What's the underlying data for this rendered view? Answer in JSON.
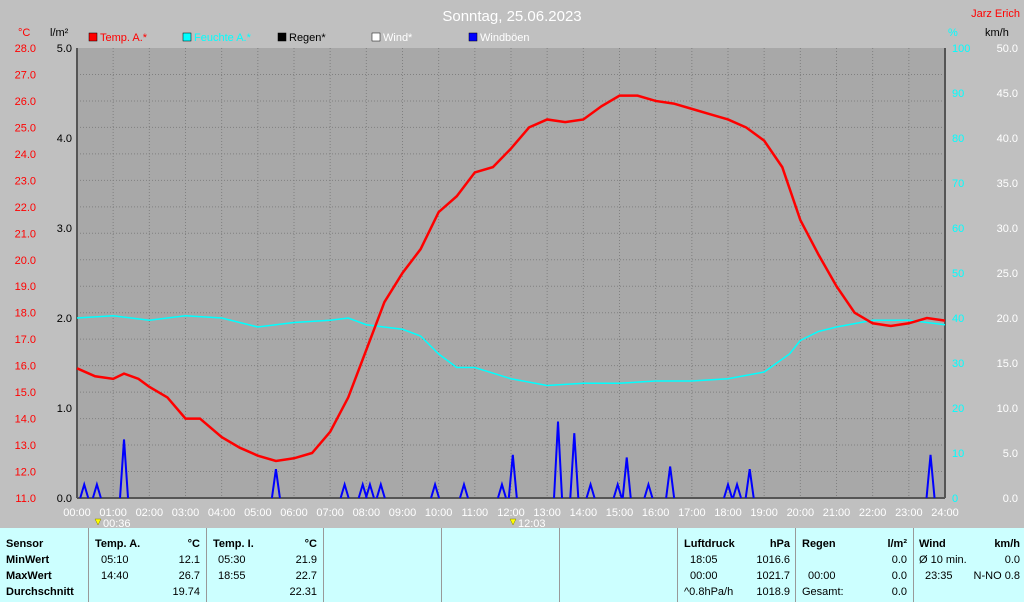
{
  "header": {
    "title": "Sonntag, 25.06.2023",
    "author": "Jarz Erich"
  },
  "units": {
    "temp": "°C",
    "rain": "l/m²",
    "hum": "%",
    "wind": "km/h"
  },
  "legend": [
    {
      "label": "Temp. A.*",
      "color": "#ff0000"
    },
    {
      "label": "Feuchte A.*",
      "color": "#00ffff"
    },
    {
      "label": "Regen*",
      "color": "#000000"
    },
    {
      "label": "Wind*",
      "color": "#ffffff"
    },
    {
      "label": "Windböen",
      "color": "#0000ff"
    }
  ],
  "marks": {
    "min": "00:36",
    "max": "12:03"
  },
  "chart_data": {
    "type": "line",
    "x_ticks": [
      "00:00",
      "01:00",
      "02:00",
      "03:00",
      "04:00",
      "05:00",
      "06:00",
      "07:00",
      "08:00",
      "09:00",
      "10:00",
      "11:00",
      "12:00",
      "13:00",
      "14:00",
      "15:00",
      "16:00",
      "17:00",
      "18:00",
      "19:00",
      "20:00",
      "21:00",
      "22:00",
      "23:00",
      "24:00"
    ],
    "temp_ticks": [
      "11.0",
      "12.0",
      "13.0",
      "14.0",
      "15.0",
      "16.0",
      "17.0",
      "18.0",
      "19.0",
      "20.0",
      "21.0",
      "22.0",
      "23.0",
      "24.0",
      "25.0",
      "26.0",
      "27.0",
      "28.0"
    ],
    "rain_ticks": [
      "0.0",
      "1.0",
      "2.0",
      "3.0",
      "4.0",
      "5.0"
    ],
    "hum_ticks": [
      "0",
      "10",
      "20",
      "30",
      "40",
      "50",
      "60",
      "70",
      "80",
      "90",
      "100"
    ],
    "wind_ticks": [
      "0.0",
      "5.0",
      "10.0",
      "15.0",
      "20.0",
      "25.0",
      "30.0",
      "35.0",
      "40.0",
      "45.0",
      "50.0"
    ],
    "temp_range": [
      11,
      28
    ],
    "hum_range": [
      0,
      100
    ],
    "wind_range": [
      0,
      50
    ],
    "series": [
      {
        "name": "Temp. A.*",
        "color": "#ff0000",
        "x": [
          0,
          0.5,
          1,
          1.3,
          1.7,
          2,
          2.5,
          3,
          3.4,
          4,
          4.5,
          5,
          5.5,
          6,
          6.5,
          7,
          7.5,
          8,
          8.5,
          9,
          9.5,
          10,
          10.5,
          11,
          11.5,
          12,
          12.5,
          13,
          13.5,
          14,
          14.5,
          15,
          15.5,
          16,
          16.5,
          17,
          17.5,
          18,
          18.5,
          19,
          19.5,
          20,
          20.5,
          21,
          21.5,
          22,
          22.5,
          23,
          23.5,
          24
        ],
        "y": [
          15.9,
          15.6,
          15.5,
          15.7,
          15.5,
          15.2,
          14.8,
          14.0,
          14.0,
          13.3,
          12.9,
          12.6,
          12.4,
          12.5,
          12.7,
          13.5,
          14.8,
          16.6,
          18.4,
          19.5,
          20.4,
          21.8,
          22.4,
          23.3,
          23.5,
          24.2,
          25.0,
          25.3,
          25.2,
          25.3,
          25.8,
          26.2,
          26.2,
          26.0,
          25.9,
          25.7,
          25.5,
          25.3,
          25.0,
          24.5,
          23.5,
          21.5,
          20.2,
          19.0,
          18.0,
          17.6,
          17.5,
          17.6,
          17.8,
          17.7
        ]
      },
      {
        "name": "Feuchte A.*",
        "color": "#00ffff",
        "x": [
          0,
          1,
          2,
          3,
          4,
          5,
          6,
          7,
          7.5,
          8,
          9,
          9.5,
          10,
          10.5,
          11,
          12,
          13,
          14,
          15,
          16,
          17,
          18,
          19,
          19.7,
          20,
          20.5,
          21,
          22,
          23,
          24
        ],
        "y": [
          40,
          40.5,
          39.5,
          40.5,
          40,
          38,
          39,
          39.5,
          40,
          38.5,
          37.5,
          36,
          32,
          29,
          29,
          26.5,
          25,
          25.5,
          25.5,
          26,
          26,
          26.5,
          28,
          32,
          35,
          37,
          38,
          39.5,
          39.5,
          38.5
        ]
      },
      {
        "name": "Windböen",
        "color": "#0000ff",
        "x": [
          0.2,
          0.55,
          1.3,
          5.5,
          7.4,
          7.9,
          8.1,
          8.4,
          9.9,
          10.7,
          11.75,
          12.05,
          13.3,
          13.75,
          14.2,
          14.95,
          15.2,
          15.8,
          16.4,
          18.0,
          18.25,
          18.6,
          23.6
        ],
        "y": [
          1.5,
          1.5,
          6.5,
          3.2,
          1.5,
          1.5,
          1.5,
          1.5,
          1.5,
          1.5,
          1.5,
          4.8,
          8.5,
          7.2,
          1.5,
          1.5,
          4.5,
          1.5,
          3.5,
          1.5,
          1.5,
          3.2,
          4.8
        ]
      }
    ]
  },
  "table": {
    "row_labels": [
      "Sensor",
      "MinWert",
      "MaxWert",
      "Durchschnitt"
    ],
    "temp_a": {
      "head": "Temp. A.",
      "unit": "°C",
      "min_time": "05:10",
      "min_val": "12.1",
      "max_time": "14:40",
      "max_val": "26.7",
      "avg": "19.74"
    },
    "temp_i": {
      "head": "Temp. I.",
      "unit": "°C",
      "min_time": "05:30",
      "min_val": "21.9",
      "max_time": "18:55",
      "max_val": "22.7",
      "avg": "22.31"
    },
    "pressure": {
      "head": "Luftdruck",
      "unit": "hPa",
      "min_time": "18:05",
      "min_val": "1016.6",
      "max_time": "00:00",
      "max_val": "1021.7",
      "trend": "^0.8hPa/h",
      "trend_val": "1018.9"
    },
    "rain": {
      "head": "Regen",
      "unit": "l/m²",
      "max_time": "00:00",
      "max_val": "0.0",
      "min_val": "0.0",
      "total_label": "Gesamt:",
      "total_val": "0.0"
    },
    "wind": {
      "head": "Wind",
      "unit": "km/h",
      "row1_label": "Ø 10 min.",
      "row1_val": "0.0",
      "row2_time": "23:35",
      "row2_val": "N-NO 0.8"
    }
  }
}
